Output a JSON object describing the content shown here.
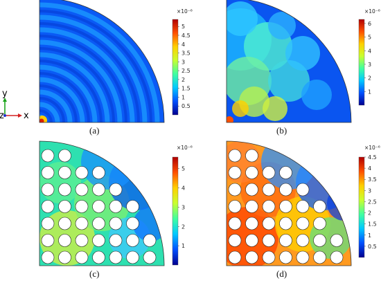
{
  "axes_indicator": {
    "y_label": "y",
    "z_label": "z",
    "x_label": "x"
  },
  "panels": [
    {
      "caption": "(a)",
      "scale_multiplier": "×10⁻⁶",
      "colorbar_ticks": [
        "5",
        "4.5",
        "4",
        "3.5",
        "3",
        "2.5",
        "2",
        "1.5",
        "1",
        "0.5"
      ],
      "colorbar_max": 5.4,
      "field_type": "ring-pattern-homogeneous",
      "holes": false
    },
    {
      "caption": "(b)",
      "scale_multiplier": "×10⁻⁶",
      "colorbar_ticks": [
        "6",
        "5",
        "4",
        "3",
        "2",
        "1"
      ],
      "colorbar_max": 6.3,
      "field_type": "diffuse-blob-pattern",
      "holes": false
    },
    {
      "caption": "(c)",
      "scale_multiplier": "×10⁻⁶",
      "colorbar_ticks": [
        "5",
        "4",
        "3",
        "2",
        "1"
      ],
      "colorbar_max": 5.6,
      "field_type": "perforated-plate-moderate",
      "holes": true
    },
    {
      "caption": "(d)",
      "scale_multiplier": "×10⁻⁶",
      "colorbar_ticks": [
        "4.5",
        "4",
        "3.5",
        "3",
        "2.5",
        "2",
        "1.5",
        "1",
        "0.5"
      ],
      "colorbar_max": 4.5,
      "field_type": "perforated-plate-high",
      "holes": true
    }
  ],
  "colormap": [
    "#00008f",
    "#0050ff",
    "#00c8ff",
    "#40ffa0",
    "#c8ff30",
    "#ffd000",
    "#ff5000",
    "#b00000"
  ]
}
